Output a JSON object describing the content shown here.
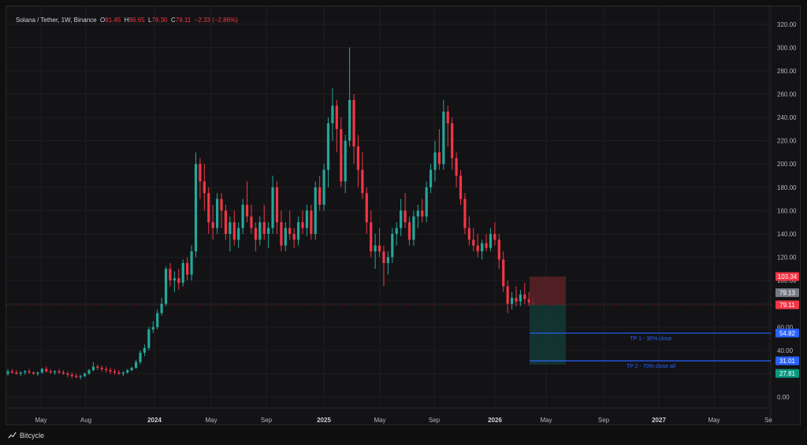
{
  "legend": {
    "symbol": "Solana / Tether, 1W, Binance",
    "o_label": "O",
    "o": "81.45",
    "h_label": "H",
    "h": "86.65",
    "l_label": "L",
    "l": "78.30",
    "c_label": "C",
    "c": "79.11",
    "change": "−2.33 (−2.86%)"
  },
  "footer": {
    "brand": "Bitcycle",
    "brand_icon": "chart-line-icon"
  },
  "colors": {
    "up": "#26a69a",
    "down": "#f23645",
    "background": "#131316",
    "grid": "#1f1f23",
    "axis_text": "#b2b5be",
    "level_line": "#2962ff",
    "stop_zone": "#5a2226",
    "profit_zone": "#133a35"
  },
  "chart_data": {
    "type": "candlestick",
    "title": "Solana / Tether, 1W, Binance",
    "xlabel": "",
    "ylabel": "",
    "ylim": [
      -20,
      330
    ],
    "y_ticks": [
      "0.00",
      "20.00",
      "40.00",
      "60.00",
      "80.00",
      "100.00",
      "120.00",
      "140.00",
      "160.00",
      "180.00",
      "200.00",
      "220.00",
      "240.00",
      "260.00",
      "280.00",
      "300.00",
      "320.00"
    ],
    "x_ticks": [
      "May",
      "Aug",
      "2024",
      "May",
      "Sep",
      "2025",
      "May",
      "Sep",
      "2026",
      "May",
      "Sep",
      "2027",
      "May",
      "Se"
    ],
    "grid": true,
    "series": [
      {
        "points": [
          [
            0,
            20,
            24,
            18,
            22
          ],
          [
            1,
            22,
            24,
            20,
            21
          ],
          [
            2,
            21,
            23,
            19,
            20
          ],
          [
            3,
            20,
            22,
            18,
            21
          ],
          [
            4,
            21,
            23,
            19,
            22
          ],
          [
            5,
            22,
            24,
            20,
            21
          ],
          [
            6,
            21,
            22,
            19,
            20
          ],
          [
            7,
            20,
            22,
            18,
            21
          ],
          [
            8,
            21,
            25,
            20,
            24
          ],
          [
            9,
            24,
            26,
            21,
            22
          ],
          [
            10,
            22,
            24,
            20,
            21
          ],
          [
            11,
            21,
            23,
            19,
            22
          ],
          [
            12,
            22,
            24,
            20,
            21
          ],
          [
            13,
            21,
            23,
            19,
            20
          ],
          [
            14,
            20,
            22,
            17,
            19
          ],
          [
            15,
            19,
            21,
            16,
            18
          ],
          [
            16,
            18,
            20,
            16,
            17
          ],
          [
            17,
            17,
            19,
            15,
            18
          ],
          [
            18,
            18,
            21,
            17,
            20
          ],
          [
            19,
            20,
            24,
            19,
            23
          ],
          [
            20,
            23,
            30,
            22,
            26
          ],
          [
            21,
            26,
            28,
            23,
            25
          ],
          [
            22,
            25,
            27,
            22,
            24
          ],
          [
            23,
            24,
            26,
            21,
            23
          ],
          [
            24,
            23,
            25,
            20,
            22
          ],
          [
            25,
            22,
            24,
            19,
            21
          ],
          [
            26,
            21,
            23,
            19,
            20
          ],
          [
            27,
            20,
            22,
            18,
            21
          ],
          [
            28,
            21,
            24,
            20,
            23
          ],
          [
            29,
            23,
            26,
            22,
            25
          ],
          [
            30,
            25,
            32,
            24,
            30
          ],
          [
            31,
            30,
            40,
            28,
            38
          ],
          [
            32,
            38,
            45,
            35,
            42
          ],
          [
            33,
            42,
            60,
            40,
            58
          ],
          [
            34,
            58,
            65,
            55,
            60
          ],
          [
            35,
            60,
            75,
            58,
            72
          ],
          [
            36,
            72,
            85,
            70,
            80
          ],
          [
            37,
            80,
            112,
            78,
            110
          ],
          [
            38,
            110,
            115,
            95,
            100
          ],
          [
            39,
            100,
            108,
            90,
            102
          ],
          [
            40,
            102,
            110,
            92,
            98
          ],
          [
            41,
            98,
            118,
            95,
            115
          ],
          [
            42,
            115,
            120,
            100,
            105
          ],
          [
            43,
            105,
            130,
            100,
            125
          ],
          [
            44,
            125,
            210,
            120,
            200
          ],
          [
            45,
            200,
            205,
            170,
            185
          ],
          [
            46,
            185,
            200,
            160,
            175
          ],
          [
            47,
            175,
            180,
            140,
            150
          ],
          [
            48,
            150,
            165,
            135,
            145
          ],
          [
            49,
            145,
            175,
            140,
            170
          ],
          [
            50,
            170,
            175,
            145,
            160
          ],
          [
            51,
            160,
            165,
            135,
            140
          ],
          [
            52,
            140,
            155,
            125,
            150
          ],
          [
            53,
            150,
            160,
            130,
            135
          ],
          [
            54,
            135,
            150,
            128,
            145
          ],
          [
            55,
            145,
            170,
            140,
            165
          ],
          [
            56,
            165,
            185,
            150,
            155
          ],
          [
            57,
            155,
            165,
            140,
            145
          ],
          [
            58,
            145,
            150,
            125,
            135
          ],
          [
            59,
            135,
            155,
            130,
            150
          ],
          [
            60,
            150,
            165,
            135,
            140
          ],
          [
            61,
            140,
            150,
            128,
            145
          ],
          [
            62,
            145,
            190,
            140,
            180
          ],
          [
            63,
            180,
            185,
            140,
            150
          ],
          [
            64,
            150,
            160,
            125,
            130
          ],
          [
            65,
            130,
            150,
            125,
            145
          ],
          [
            66,
            145,
            160,
            135,
            140
          ],
          [
            67,
            140,
            145,
            128,
            135
          ],
          [
            68,
            135,
            155,
            130,
            150
          ],
          [
            69,
            150,
            160,
            140,
            145
          ],
          [
            70,
            145,
            165,
            138,
            160
          ],
          [
            71,
            160,
            165,
            135,
            140
          ],
          [
            72,
            140,
            185,
            135,
            180
          ],
          [
            73,
            180,
            190,
            160,
            165
          ],
          [
            74,
            165,
            200,
            160,
            195
          ],
          [
            75,
            195,
            240,
            180,
            235
          ],
          [
            76,
            235,
            265,
            220,
            250
          ],
          [
            77,
            250,
            255,
            210,
            230
          ],
          [
            78,
            230,
            240,
            180,
            185
          ],
          [
            79,
            185,
            225,
            175,
            220
          ],
          [
            80,
            220,
            300,
            215,
            255
          ],
          [
            81,
            255,
            260,
            200,
            215
          ],
          [
            82,
            215,
            225,
            180,
            195
          ],
          [
            83,
            195,
            210,
            170,
            175
          ],
          [
            84,
            175,
            180,
            140,
            150
          ],
          [
            85,
            150,
            160,
            120,
            125
          ],
          [
            86,
            125,
            140,
            110,
            130
          ],
          [
            87,
            130,
            145,
            120,
            125
          ],
          [
            88,
            125,
            130,
            95,
            115
          ],
          [
            89,
            115,
            125,
            105,
            120
          ],
          [
            90,
            120,
            145,
            115,
            140
          ],
          [
            91,
            140,
            150,
            130,
            145
          ],
          [
            92,
            145,
            170,
            138,
            160
          ],
          [
            93,
            160,
            175,
            145,
            150
          ],
          [
            94,
            150,
            155,
            130,
            135
          ],
          [
            95,
            135,
            160,
            130,
            155
          ],
          [
            96,
            155,
            165,
            145,
            160
          ],
          [
            97,
            160,
            170,
            150,
            155
          ],
          [
            98,
            155,
            185,
            150,
            180
          ],
          [
            99,
            180,
            200,
            175,
            195
          ],
          [
            100,
            195,
            220,
            185,
            210
          ],
          [
            101,
            210,
            230,
            195,
            200
          ],
          [
            102,
            200,
            255,
            195,
            245
          ],
          [
            103,
            245,
            250,
            215,
            235
          ],
          [
            104,
            235,
            240,
            195,
            205
          ],
          [
            105,
            205,
            210,
            180,
            190
          ],
          [
            106,
            190,
            195,
            165,
            170
          ],
          [
            107,
            170,
            175,
            140,
            145
          ],
          [
            108,
            145,
            155,
            130,
            135
          ],
          [
            109,
            135,
            145,
            125,
            130
          ],
          [
            110,
            130,
            140,
            120,
            125
          ],
          [
            111,
            125,
            135,
            118,
            132
          ],
          [
            112,
            132,
            140,
            125,
            128
          ],
          [
            113,
            128,
            145,
            125,
            140
          ],
          [
            114,
            140,
            150,
            130,
            135
          ],
          [
            115,
            135,
            140,
            110,
            118
          ],
          [
            116,
            118,
            125,
            90,
            95
          ],
          [
            117,
            95,
            100,
            72,
            80
          ],
          [
            118,
            80,
            90,
            75,
            85
          ],
          [
            119,
            85,
            95,
            78,
            82
          ],
          [
            120,
            82,
            92,
            78,
            88
          ],
          [
            121,
            88,
            98,
            80,
            84
          ],
          [
            122,
            84,
            90,
            78,
            81
          ],
          [
            123,
            81.45,
            86.65,
            78.3,
            79.11
          ]
        ]
      }
    ],
    "annotations": {
      "current_price": "79.13",
      "last_close": "79.11",
      "stop_loss": "103.34",
      "take_profit_1": "54.82",
      "take_profit_2_close": "31.01",
      "take_profit_2_zone_bottom": "27.81",
      "take_profit_1_label": "TP 1 - 30% close",
      "take_profit_2_label": "TP 2 - 70% close all"
    },
    "stop_zone_value": 103.34,
    "entry_value": 79.11,
    "tp1_value": 54.82,
    "tp2_value": 31.01,
    "tp2_bottom_value": 27.81
  }
}
